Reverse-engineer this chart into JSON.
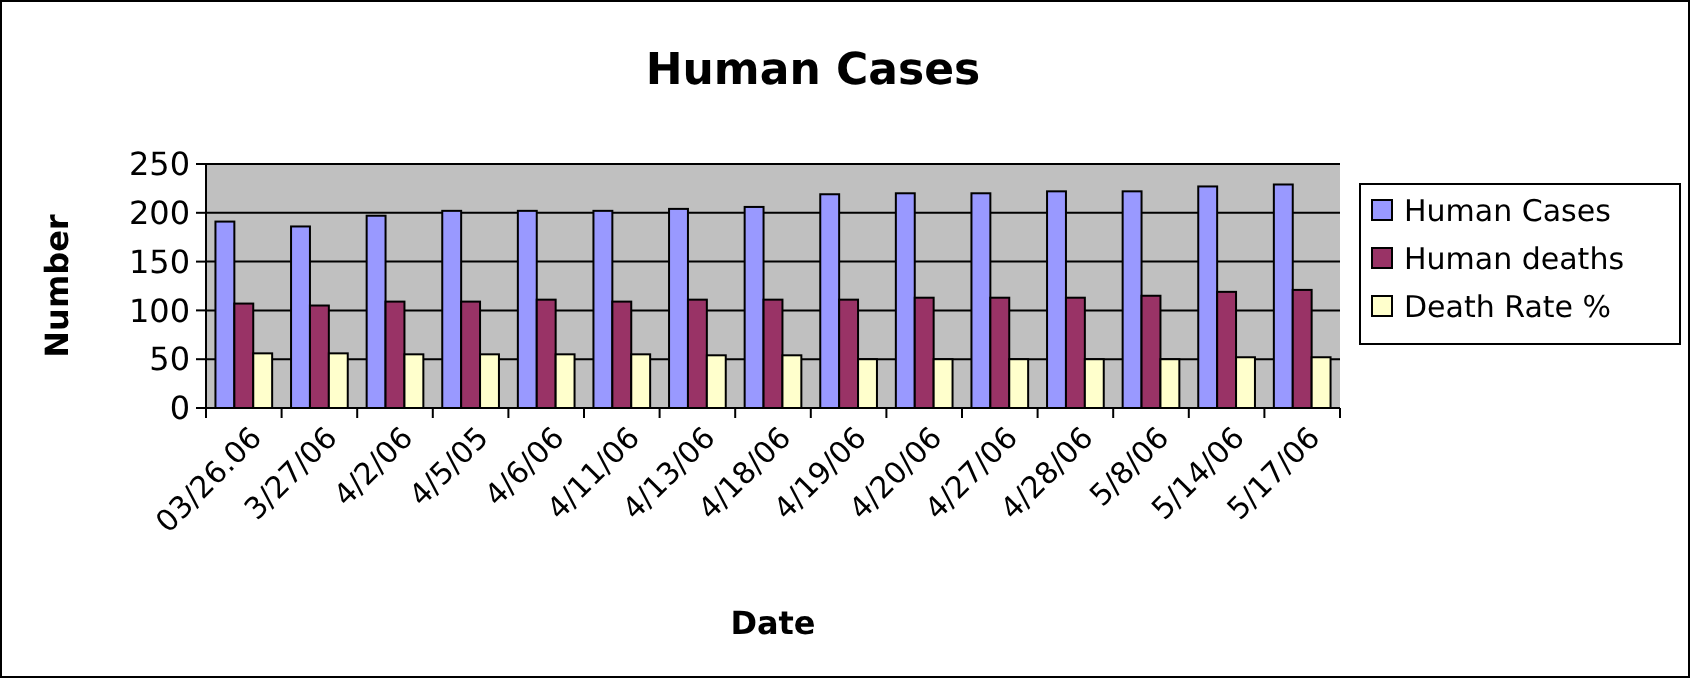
{
  "chart_data": {
    "type": "bar",
    "title": "Human Cases",
    "xlabel": "Date",
    "ylabel": "Number",
    "categories": [
      "03/26.06",
      "3/27/06",
      "4/2/06",
      "4/5/05",
      "4/6/06",
      "4/11/06",
      "4/13/06",
      "4/18/06",
      "4/19/06",
      "4/20/06",
      "4/27/06",
      "4/28/06",
      "5/8/06",
      "5/14/06",
      "5/17/06"
    ],
    "series": [
      {
        "name": "Human Cases",
        "color": "#9999ff",
        "values": [
          191,
          186,
          197,
          202,
          202,
          202,
          204,
          206,
          219,
          220,
          220,
          222,
          222,
          227,
          229
        ]
      },
      {
        "name": "Human deaths",
        "color": "#993366",
        "values": [
          107,
          105,
          109,
          109,
          111,
          109,
          111,
          111,
          111,
          113,
          113,
          113,
          115,
          119,
          121
        ]
      },
      {
        "name": "Death Rate %",
        "color": "#ffffcc",
        "values": [
          56,
          56,
          55,
          55,
          55,
          55,
          54,
          54,
          50,
          50,
          50,
          50,
          50,
          52,
          52
        ]
      }
    ],
    "ylim": [
      0,
      250
    ],
    "yticks": [
      0,
      50,
      100,
      150,
      200,
      250
    ],
    "grid": "y",
    "legend": "right"
  }
}
